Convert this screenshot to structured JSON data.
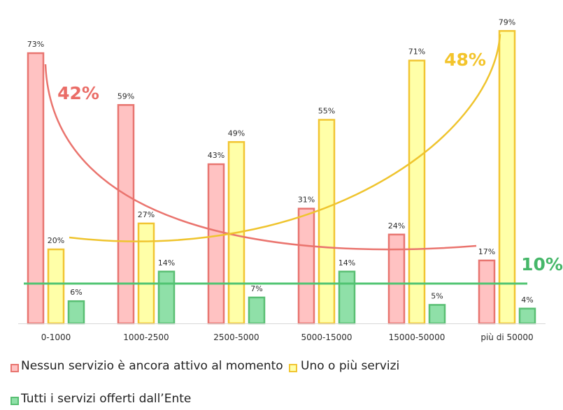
{
  "chart_data": {
    "type": "bar",
    "title": "",
    "xlabel": "",
    "ylabel": "",
    "ylim": [
      0,
      80
    ],
    "grid": false,
    "legend_position": "bottom-left",
    "categories": [
      "0-1000",
      "1000-2500",
      "2500-5000",
      "5000-15000",
      "15000-50000",
      "più di 50000"
    ],
    "series": [
      {
        "name": "Nessun servizio è ancora attivo al momento",
        "values": [
          73,
          59,
          43,
          31,
          24,
          17
        ],
        "labels": [
          "73%",
          "59%",
          "43%",
          "31%",
          "24%",
          "17%"
        ],
        "fill": "#ffc2c2",
        "stroke": "#e87570"
      },
      {
        "name": "Uno o più servizi",
        "values": [
          20,
          27,
          49,
          55,
          71,
          79
        ],
        "labels": [
          "20%",
          "27%",
          "49%",
          "55%",
          "71%",
          "79%"
        ],
        "fill": "#ffffa8",
        "stroke": "#f1c532"
      },
      {
        "name": "Tutti i servizi offerti dall’Ente",
        "values": [
          6,
          14,
          7,
          14,
          5,
          4
        ],
        "labels": [
          "6%",
          "14%",
          "7%",
          "14%",
          "5%",
          "4%"
        ],
        "fill": "#8fe0a8",
        "stroke": "#59bf73"
      }
    ],
    "callouts": [
      {
        "text": "42%",
        "series": 0,
        "color": "#ea6d67"
      },
      {
        "text": "48%",
        "series": 1,
        "color": "#f3c42b"
      },
      {
        "text": "10%",
        "series": 2,
        "color": "#46b769"
      }
    ]
  }
}
